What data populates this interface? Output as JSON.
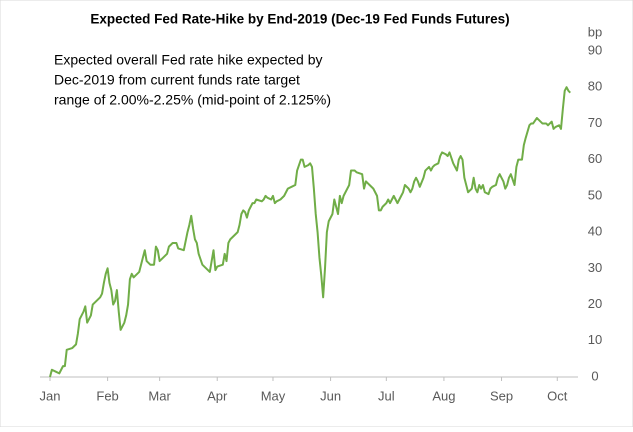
{
  "chart_data": {
    "type": "line",
    "title": "Expected Fed Rate-Hike by End-2019 (Dec-19 Fed Funds Futures)",
    "y_label": "bp",
    "annotation": [
      "Expected overall Fed rate hike expected by",
      "Dec-2019 from current funds rate target",
      "range of 2.00%-2.25% (mid-point of 2.125%)"
    ],
    "color": "#70ad47",
    "xlim": [
      0,
      282
    ],
    "xticks": [
      {
        "value": 0,
        "label": "Jan"
      },
      {
        "value": 31,
        "label": "Feb"
      },
      {
        "value": 59,
        "label": "Mar"
      },
      {
        "value": 90,
        "label": "Apr"
      },
      {
        "value": 120,
        "label": "May"
      },
      {
        "value": 151,
        "label": "Jun"
      },
      {
        "value": 181,
        "label": "Jul"
      },
      {
        "value": 212,
        "label": "Aug"
      },
      {
        "value": 243,
        "label": "Sep"
      },
      {
        "value": 273,
        "label": "Oct"
      }
    ],
    "ylim": [
      0,
      90
    ],
    "yticks": [
      0,
      10,
      20,
      30,
      40,
      50,
      60,
      70,
      80,
      90
    ],
    "y_axis_side": "right",
    "grid": false,
    "x": [
      0,
      1,
      3,
      5,
      7,
      8,
      9,
      12,
      14,
      15,
      16,
      18,
      19,
      20,
      22,
      23,
      25,
      27,
      28,
      29,
      30,
      31,
      32,
      33,
      34,
      35,
      36,
      37,
      38,
      40,
      41,
      42,
      43,
      44,
      45,
      46,
      48,
      49,
      51,
      52,
      54,
      56,
      57,
      58,
      59,
      61,
      63,
      64,
      66,
      68,
      69,
      72,
      74,
      75,
      76,
      77,
      78,
      79,
      80,
      82,
      84,
      86,
      87,
      88,
      89,
      90,
      93,
      94,
      95,
      96,
      97,
      99,
      101,
      102,
      103,
      104,
      105,
      106,
      107,
      108,
      109,
      110,
      111,
      114,
      115,
      116,
      117,
      119,
      120,
      121,
      122,
      124,
      126,
      128,
      130,
      132,
      133,
      135,
      136,
      137,
      139,
      140,
      141,
      142,
      143,
      144,
      145,
      146,
      147,
      148,
      149,
      150,
      152,
      153,
      154,
      155,
      156,
      157,
      158,
      161,
      162,
      164,
      165,
      168,
      169,
      170,
      171,
      172,
      174,
      176,
      177,
      178,
      179,
      181,
      182,
      183,
      185,
      186,
      187,
      188,
      189,
      190,
      191,
      193,
      194,
      195,
      196,
      197,
      198,
      199,
      201,
      202,
      204,
      205,
      206,
      207,
      209,
      210,
      211,
      213,
      214,
      215,
      217,
      218,
      219,
      220,
      221,
      222,
      223,
      225,
      226,
      227,
      228,
      229,
      230,
      231,
      232,
      233,
      234,
      236,
      237,
      238,
      240,
      241,
      242,
      244,
      245,
      246,
      247,
      248,
      250,
      251,
      252,
      254,
      255,
      256,
      258,
      259,
      260,
      262,
      263,
      265,
      267,
      268,
      269,
      270,
      271,
      272,
      274,
      275,
      276,
      277,
      278,
      279,
      280
    ],
    "values": [
      0,
      2,
      1.5,
      1,
      3,
      3,
      7.5,
      8,
      9,
      12,
      16,
      18,
      19.5,
      15,
      17,
      20,
      21,
      22,
      23,
      26,
      28.5,
      30,
      26,
      24,
      20,
      21,
      24,
      18,
      13,
      15,
      17,
      20,
      27,
      28.5,
      27.5,
      28,
      29,
      31,
      35,
      32,
      31,
      31,
      36,
      35,
      32,
      33,
      34,
      36,
      37,
      37,
      35.5,
      35,
      40,
      42,
      44.5,
      41,
      38,
      37,
      34,
      31,
      30,
      29,
      32,
      35,
      29.5,
      30.5,
      31,
      34,
      32,
      37,
      38,
      39,
      40,
      42,
      45,
      46,
      45.5,
      44,
      46,
      47,
      48,
      48,
      49,
      48.5,
      49,
      50,
      49.5,
      49,
      50,
      48,
      48.5,
      49,
      50,
      52,
      52.5,
      53,
      57,
      60,
      60,
      58,
      58.5,
      59,
      58,
      52,
      45,
      40,
      33,
      28,
      22,
      30,
      40,
      43,
      45,
      49,
      47,
      45,
      50,
      48,
      50,
      53,
      57,
      57,
      56.5,
      56,
      52,
      54,
      53.5,
      53,
      52,
      50,
      46,
      46,
      47,
      48,
      49,
      48,
      50,
      49,
      48,
      49,
      50,
      51,
      53,
      52,
      51,
      52,
      54,
      55,
      54,
      52.5,
      55,
      57,
      58,
      57,
      58,
      58.5,
      59,
      61,
      62,
      61.5,
      61,
      62,
      59,
      58,
      57,
      60,
      61,
      60,
      55,
      51,
      51.5,
      52,
      55,
      52,
      51,
      53,
      52,
      53,
      51,
      50.5,
      52,
      52.5,
      53,
      55,
      56,
      54,
      52,
      53,
      55,
      56,
      53,
      58,
      60,
      60,
      64,
      66,
      69.5,
      70,
      70,
      71.5,
      71,
      70,
      70,
      69.5,
      70,
      70.5,
      68.5,
      69,
      69.5,
      68.5,
      74,
      79,
      80,
      79,
      78.5
    ]
  }
}
